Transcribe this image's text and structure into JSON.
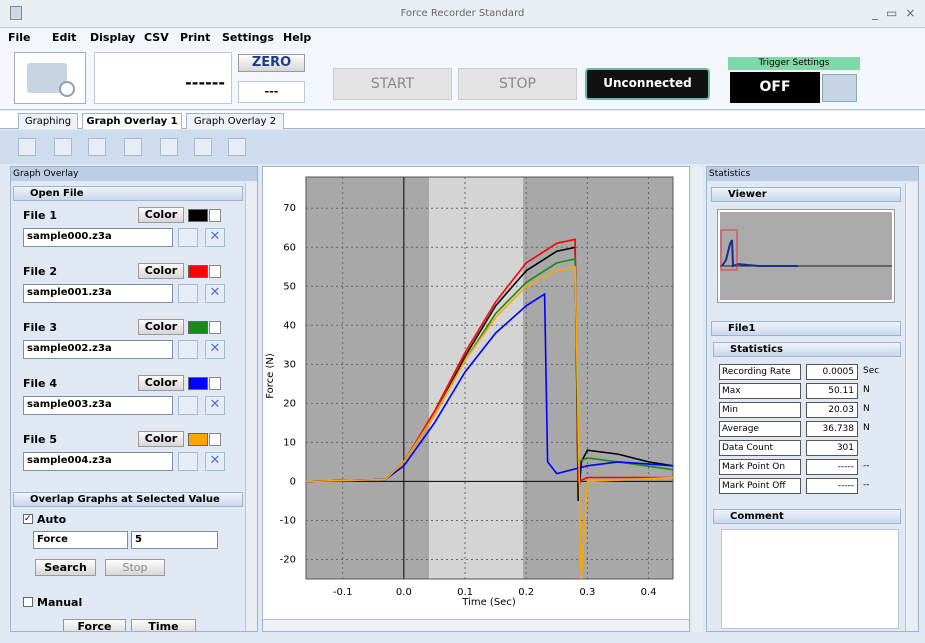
{
  "window": {
    "title": "Force Recorder Standard"
  },
  "menu": [
    "File",
    "Edit",
    "Display",
    "CSV",
    "Print",
    "Settings",
    "Help"
  ],
  "toolbar": {
    "display": "------",
    "zero": "ZERO",
    "zero_value": "---",
    "start": "START",
    "stop": "STOP",
    "status": "Unconnected",
    "trigger_label": "Trigger Settings",
    "trigger_value": "OFF"
  },
  "tabs": [
    "Graphing",
    "Graph Overlay 1",
    "Graph Overlay 2"
  ],
  "left_panel": {
    "title": "Graph Overlay",
    "open_file": "Open File",
    "files": [
      {
        "label": "File 1",
        "color_button": "Color",
        "color": "#000000",
        "filename": "sample000.z3a"
      },
      {
        "label": "File 2",
        "color_button": "Color",
        "color": "#ff0000",
        "filename": "sample001.z3a"
      },
      {
        "label": "File 3",
        "color_button": "Color",
        "color": "#1a8a1a",
        "filename": "sample002.z3a"
      },
      {
        "label": "File 4",
        "color_button": "Color",
        "color": "#0000ff",
        "filename": "sample003.z3a"
      },
      {
        "label": "File 5",
        "color_button": "Color",
        "color": "#ffa500",
        "filename": "sample004.z3a"
      }
    ],
    "overlap": {
      "title": "Overlap Graphs at Selected Value",
      "auto": "Auto",
      "field": "Force",
      "value": "5",
      "search": "Search",
      "stop": "Stop",
      "manual": "Manual",
      "columns": [
        "Force",
        "Time"
      ]
    }
  },
  "chart_data": {
    "type": "line",
    "xlabel": "Time (Sec)",
    "ylabel": "Force (N)",
    "xlim": [
      -0.16,
      0.44
    ],
    "ylim": [
      -25,
      78
    ],
    "xticks": [
      -0.1,
      {
        "value": 0,
        "label": "0.0"
      },
      0.1,
      0.2,
      0.3,
      0.4
    ],
    "yticks": [
      -20,
      -10,
      0,
      10,
      20,
      30,
      40,
      50,
      60,
      70
    ],
    "grid": true,
    "series": [
      {
        "name": "sample000.z3a",
        "color": "#000000",
        "x": [
          -0.16,
          -0.03,
          0.0,
          0.05,
          0.1,
          0.15,
          0.2,
          0.25,
          0.28,
          0.285,
          0.29,
          0.3,
          0.35,
          0.4,
          0.44
        ],
        "values": [
          0,
          0.5,
          5,
          17,
          32,
          45,
          54,
          59,
          60,
          -5,
          5,
          8,
          7,
          5,
          4
        ]
      },
      {
        "name": "sample001.z3a",
        "color": "#ff0000",
        "x": [
          -0.16,
          -0.03,
          0.0,
          0.05,
          0.1,
          0.15,
          0.2,
          0.25,
          0.28,
          0.285,
          0.3,
          0.44
        ],
        "values": [
          0,
          0.5,
          5,
          18,
          33,
          46,
          56,
          61,
          62,
          0,
          1,
          1
        ]
      },
      {
        "name": "sample002.z3a",
        "color": "#1a8a1a",
        "x": [
          -0.16,
          -0.03,
          0.0,
          0.05,
          0.1,
          0.15,
          0.2,
          0.25,
          0.28,
          0.285,
          0.3,
          0.35,
          0.44
        ],
        "values": [
          0,
          0.5,
          5,
          17,
          31,
          43,
          51,
          56,
          57,
          5,
          6,
          5,
          3
        ]
      },
      {
        "name": "sample003.z3a",
        "color": "#0000ff",
        "x": [
          -0.16,
          -0.03,
          0.0,
          0.05,
          0.1,
          0.15,
          0.2,
          0.23,
          0.235,
          0.25,
          0.3,
          0.35,
          0.44
        ],
        "values": [
          0,
          0.5,
          4,
          15,
          28,
          38,
          45,
          48,
          5,
          2,
          4,
          5,
          4
        ]
      },
      {
        "name": "sample004.z3a",
        "color": "#ffa500",
        "x": [
          -0.16,
          -0.03,
          0.0,
          0.05,
          0.1,
          0.15,
          0.2,
          0.25,
          0.28,
          0.29,
          0.3,
          0.44
        ],
        "values": [
          0,
          0.5,
          5,
          17,
          31,
          42,
          50,
          54,
          55,
          -25,
          0,
          1
        ]
      }
    ]
  },
  "right_panel": {
    "title": "Statistics",
    "viewer": "Viewer",
    "file": "File1",
    "statistics": "Statistics",
    "rows": [
      [
        "Recording Rate",
        "0.0005",
        "Sec"
      ],
      [
        "Max",
        "50.11",
        "N"
      ],
      [
        "Min",
        "20.03",
        "N"
      ],
      [
        "Average",
        "36.738",
        "N"
      ],
      [
        "Data Count",
        "301",
        ""
      ],
      [
        "Mark Point On",
        "-----",
        "--"
      ],
      [
        "Mark Point Off",
        "-----",
        "--"
      ]
    ],
    "comment": "Comment"
  }
}
